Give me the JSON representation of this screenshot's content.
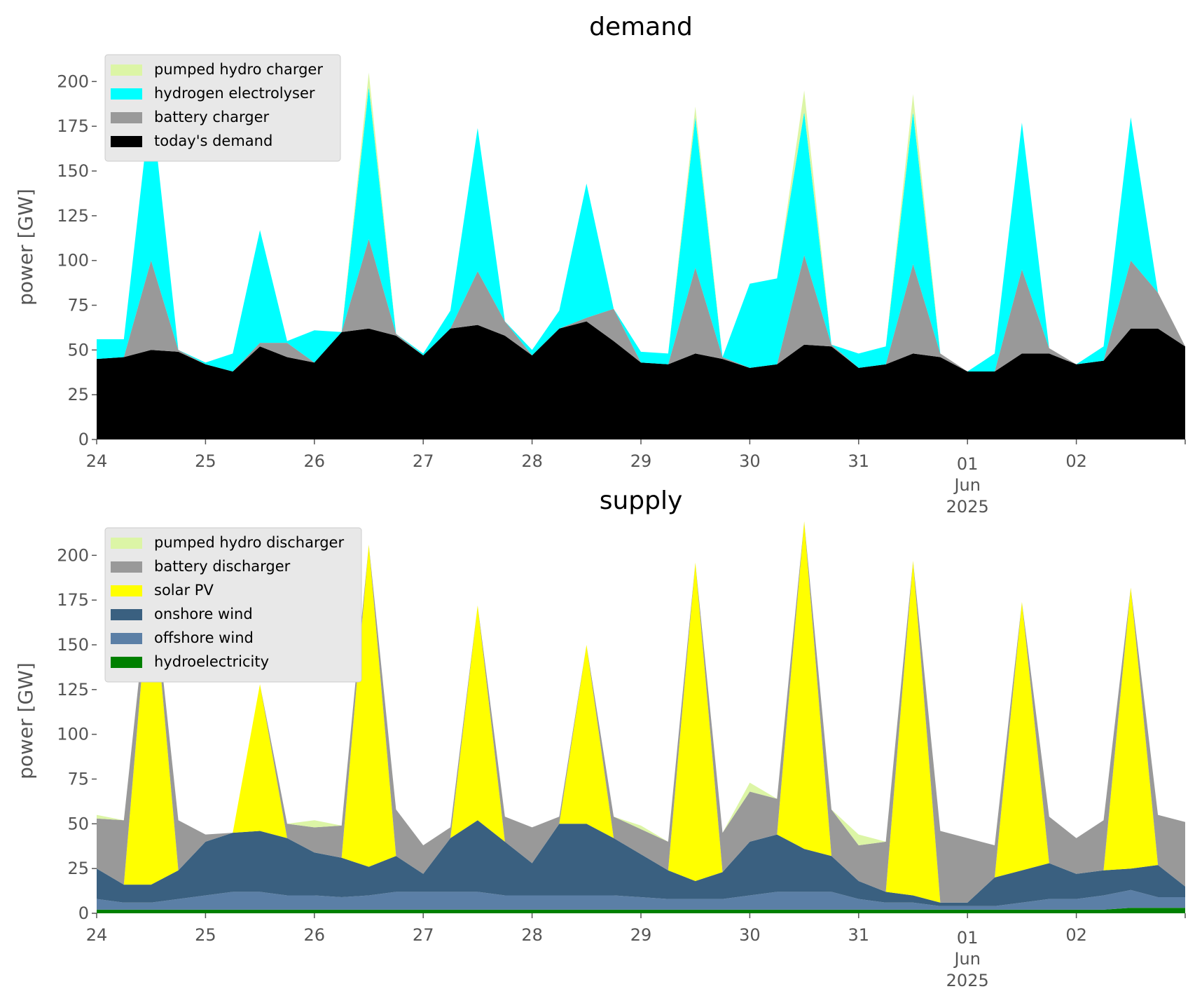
{
  "chart_data": [
    {
      "type": "area",
      "stacked": true,
      "title": "demand",
      "xlabel": "",
      "ylabel": "power [GW]",
      "ylim": [
        0,
        215
      ],
      "yticks": [
        0,
        25,
        50,
        75,
        100,
        125,
        150,
        175,
        200
      ],
      "xlim": [
        0,
        10
      ],
      "x_ticks": [
        {
          "pos": 0,
          "label": "24"
        },
        {
          "pos": 1,
          "label": "25"
        },
        {
          "pos": 2,
          "label": "26"
        },
        {
          "pos": 3,
          "label": "27"
        },
        {
          "pos": 4,
          "label": "28"
        },
        {
          "pos": 5,
          "label": "29"
        },
        {
          "pos": 6,
          "label": "30"
        },
        {
          "pos": 7,
          "label": "31"
        },
        {
          "pos": 8,
          "label": "01",
          "sub": [
            "Jun",
            "2025"
          ]
        },
        {
          "pos": 9,
          "label": "02"
        }
      ],
      "x": [
        0,
        0.25,
        0.5,
        0.75,
        1,
        1.25,
        1.5,
        1.75,
        2,
        2.25,
        2.5,
        2.75,
        3,
        3.25,
        3.5,
        3.75,
        4,
        4.25,
        4.5,
        4.75,
        5,
        5.25,
        5.5,
        5.75,
        6,
        6.25,
        6.5,
        6.75,
        7,
        7.25,
        7.5,
        7.75,
        8,
        8.25,
        8.5,
        8.75,
        9,
        9.25,
        9.5,
        9.75,
        10
      ],
      "legend_position": "upper-left",
      "legend_order": [
        "pumped hydro charger",
        "hydrogen electrolyser",
        "battery charger",
        "today's demand"
      ],
      "series": [
        {
          "name": "today's demand",
          "color": "#000000",
          "values": [
            45,
            46,
            50,
            49,
            42,
            38,
            52,
            46,
            43,
            60,
            62,
            58,
            47,
            62,
            64,
            58,
            47,
            62,
            66,
            55,
            43,
            42,
            48,
            45,
            40,
            42,
            53,
            52,
            40,
            42,
            48,
            46,
            38,
            38,
            48,
            48,
            42,
            44,
            62,
            62,
            52
          ]
        },
        {
          "name": "battery charger",
          "color": "#999999",
          "values": [
            0,
            0,
            50,
            1,
            0,
            0,
            2,
            8,
            0,
            0,
            50,
            1,
            0,
            0,
            30,
            8,
            0,
            0,
            2,
            18,
            0,
            0,
            48,
            1,
            0,
            0,
            50,
            1,
            0,
            0,
            50,
            2,
            0,
            0,
            47,
            3,
            0,
            0,
            38,
            20,
            0
          ]
        },
        {
          "name": "hydrogen electrolyser",
          "color": "#00ffff",
          "values": [
            11,
            10,
            90,
            0,
            1,
            10,
            63,
            1,
            18,
            0,
            85,
            0,
            1,
            10,
            80,
            0,
            3,
            10,
            75,
            0,
            6,
            6,
            84,
            0,
            47,
            48,
            80,
            0,
            8,
            10,
            85,
            0,
            0,
            10,
            82,
            0,
            0,
            8,
            80,
            0,
            0
          ]
        },
        {
          "name": "pumped hydro charger",
          "color": "#dcf5a6",
          "values": [
            0,
            0,
            0,
            0,
            0,
            0,
            0,
            0,
            0,
            0,
            8,
            0,
            0,
            0,
            0,
            0,
            0,
            0,
            0,
            0,
            0,
            0,
            6,
            0,
            0,
            0,
            12,
            0,
            0,
            0,
            10,
            0,
            0,
            0,
            0,
            0,
            0,
            0,
            0,
            0,
            0
          ]
        }
      ]
    },
    {
      "type": "area",
      "stacked": true,
      "title": "supply",
      "xlabel": "",
      "ylabel": "power [GW]",
      "ylim": [
        0,
        215
      ],
      "yticks": [
        0,
        25,
        50,
        75,
        100,
        125,
        150,
        175,
        200
      ],
      "xlim": [
        0,
        10
      ],
      "x_ticks": [
        {
          "pos": 0,
          "label": "24"
        },
        {
          "pos": 1,
          "label": "25"
        },
        {
          "pos": 2,
          "label": "26"
        },
        {
          "pos": 3,
          "label": "27"
        },
        {
          "pos": 4,
          "label": "28"
        },
        {
          "pos": 5,
          "label": "29"
        },
        {
          "pos": 6,
          "label": "30"
        },
        {
          "pos": 7,
          "label": "31"
        },
        {
          "pos": 8,
          "label": "01",
          "sub": [
            "Jun",
            "2025"
          ]
        },
        {
          "pos": 9,
          "label": "02"
        }
      ],
      "x": [
        0,
        0.25,
        0.5,
        0.75,
        1,
        1.25,
        1.5,
        1.75,
        2,
        2.25,
        2.5,
        2.75,
        3,
        3.25,
        3.5,
        3.75,
        4,
        4.25,
        4.5,
        4.75,
        5,
        5.25,
        5.5,
        5.75,
        6,
        6.25,
        6.5,
        6.75,
        7,
        7.25,
        7.5,
        7.75,
        8,
        8.25,
        8.5,
        8.75,
        9,
        9.25,
        9.5,
        9.75,
        10
      ],
      "legend_position": "upper-left",
      "legend_order": [
        "pumped hydro discharger",
        "battery discharger",
        "solar PV",
        "onshore wind",
        "offshore wind",
        "hydroelectricity"
      ],
      "series": [
        {
          "name": "hydroelectricity",
          "color": "#008000",
          "values": [
            2,
            2,
            2,
            2,
            2,
            2,
            2,
            2,
            2,
            2,
            2,
            2,
            2,
            2,
            2,
            2,
            2,
            2,
            2,
            2,
            2,
            2,
            2,
            2,
            2,
            2,
            2,
            2,
            2,
            2,
            2,
            2,
            2,
            2,
            2,
            2,
            2,
            2,
            3,
            3,
            3
          ]
        },
        {
          "name": "offshore wind",
          "color": "#5b7fa6",
          "values": [
            6,
            4,
            4,
            6,
            8,
            10,
            10,
            8,
            8,
            7,
            8,
            10,
            10,
            10,
            10,
            8,
            8,
            8,
            8,
            8,
            7,
            6,
            6,
            6,
            8,
            10,
            10,
            10,
            6,
            4,
            4,
            2,
            2,
            2,
            4,
            6,
            6,
            8,
            10,
            6,
            6
          ]
        },
        {
          "name": "onshore wind",
          "color": "#3a6080",
          "values": [
            17,
            10,
            10,
            16,
            30,
            33,
            34,
            32,
            24,
            22,
            16,
            20,
            10,
            30,
            40,
            30,
            18,
            40,
            40,
            32,
            24,
            16,
            10,
            15,
            30,
            32,
            24,
            20,
            10,
            6,
            4,
            2,
            2,
            16,
            18,
            20,
            14,
            14,
            12,
            18,
            6
          ]
        },
        {
          "name": "solar PV",
          "color": "#ffff00",
          "values": [
            0,
            0,
            178,
            0,
            0,
            0,
            82,
            0,
            0,
            0,
            180,
            0,
            0,
            0,
            120,
            0,
            0,
            0,
            100,
            0,
            0,
            0,
            178,
            0,
            0,
            0,
            183,
            0,
            0,
            0,
            187,
            0,
            0,
            0,
            150,
            0,
            0,
            0,
            157,
            0,
            0
          ]
        },
        {
          "name": "battery discharger",
          "color": "#999999",
          "values": [
            28,
            36,
            0,
            28,
            4,
            0,
            0,
            8,
            14,
            18,
            0,
            26,
            16,
            6,
            0,
            14,
            20,
            4,
            0,
            12,
            14,
            16,
            0,
            22,
            28,
            20,
            0,
            26,
            20,
            28,
            0,
            40,
            36,
            18,
            0,
            26,
            20,
            28,
            0,
            28,
            36
          ]
        },
        {
          "name": "pumped hydro discharger",
          "color": "#dcf5a6",
          "values": [
            2,
            0,
            0,
            0,
            0,
            0,
            0,
            0,
            4,
            0,
            0,
            0,
            0,
            0,
            0,
            0,
            0,
            0,
            0,
            0,
            2,
            0,
            0,
            0,
            5,
            0,
            0,
            0,
            6,
            0,
            0,
            0,
            0,
            0,
            0,
            0,
            0,
            0,
            0,
            0,
            0
          ]
        }
      ]
    }
  ]
}
